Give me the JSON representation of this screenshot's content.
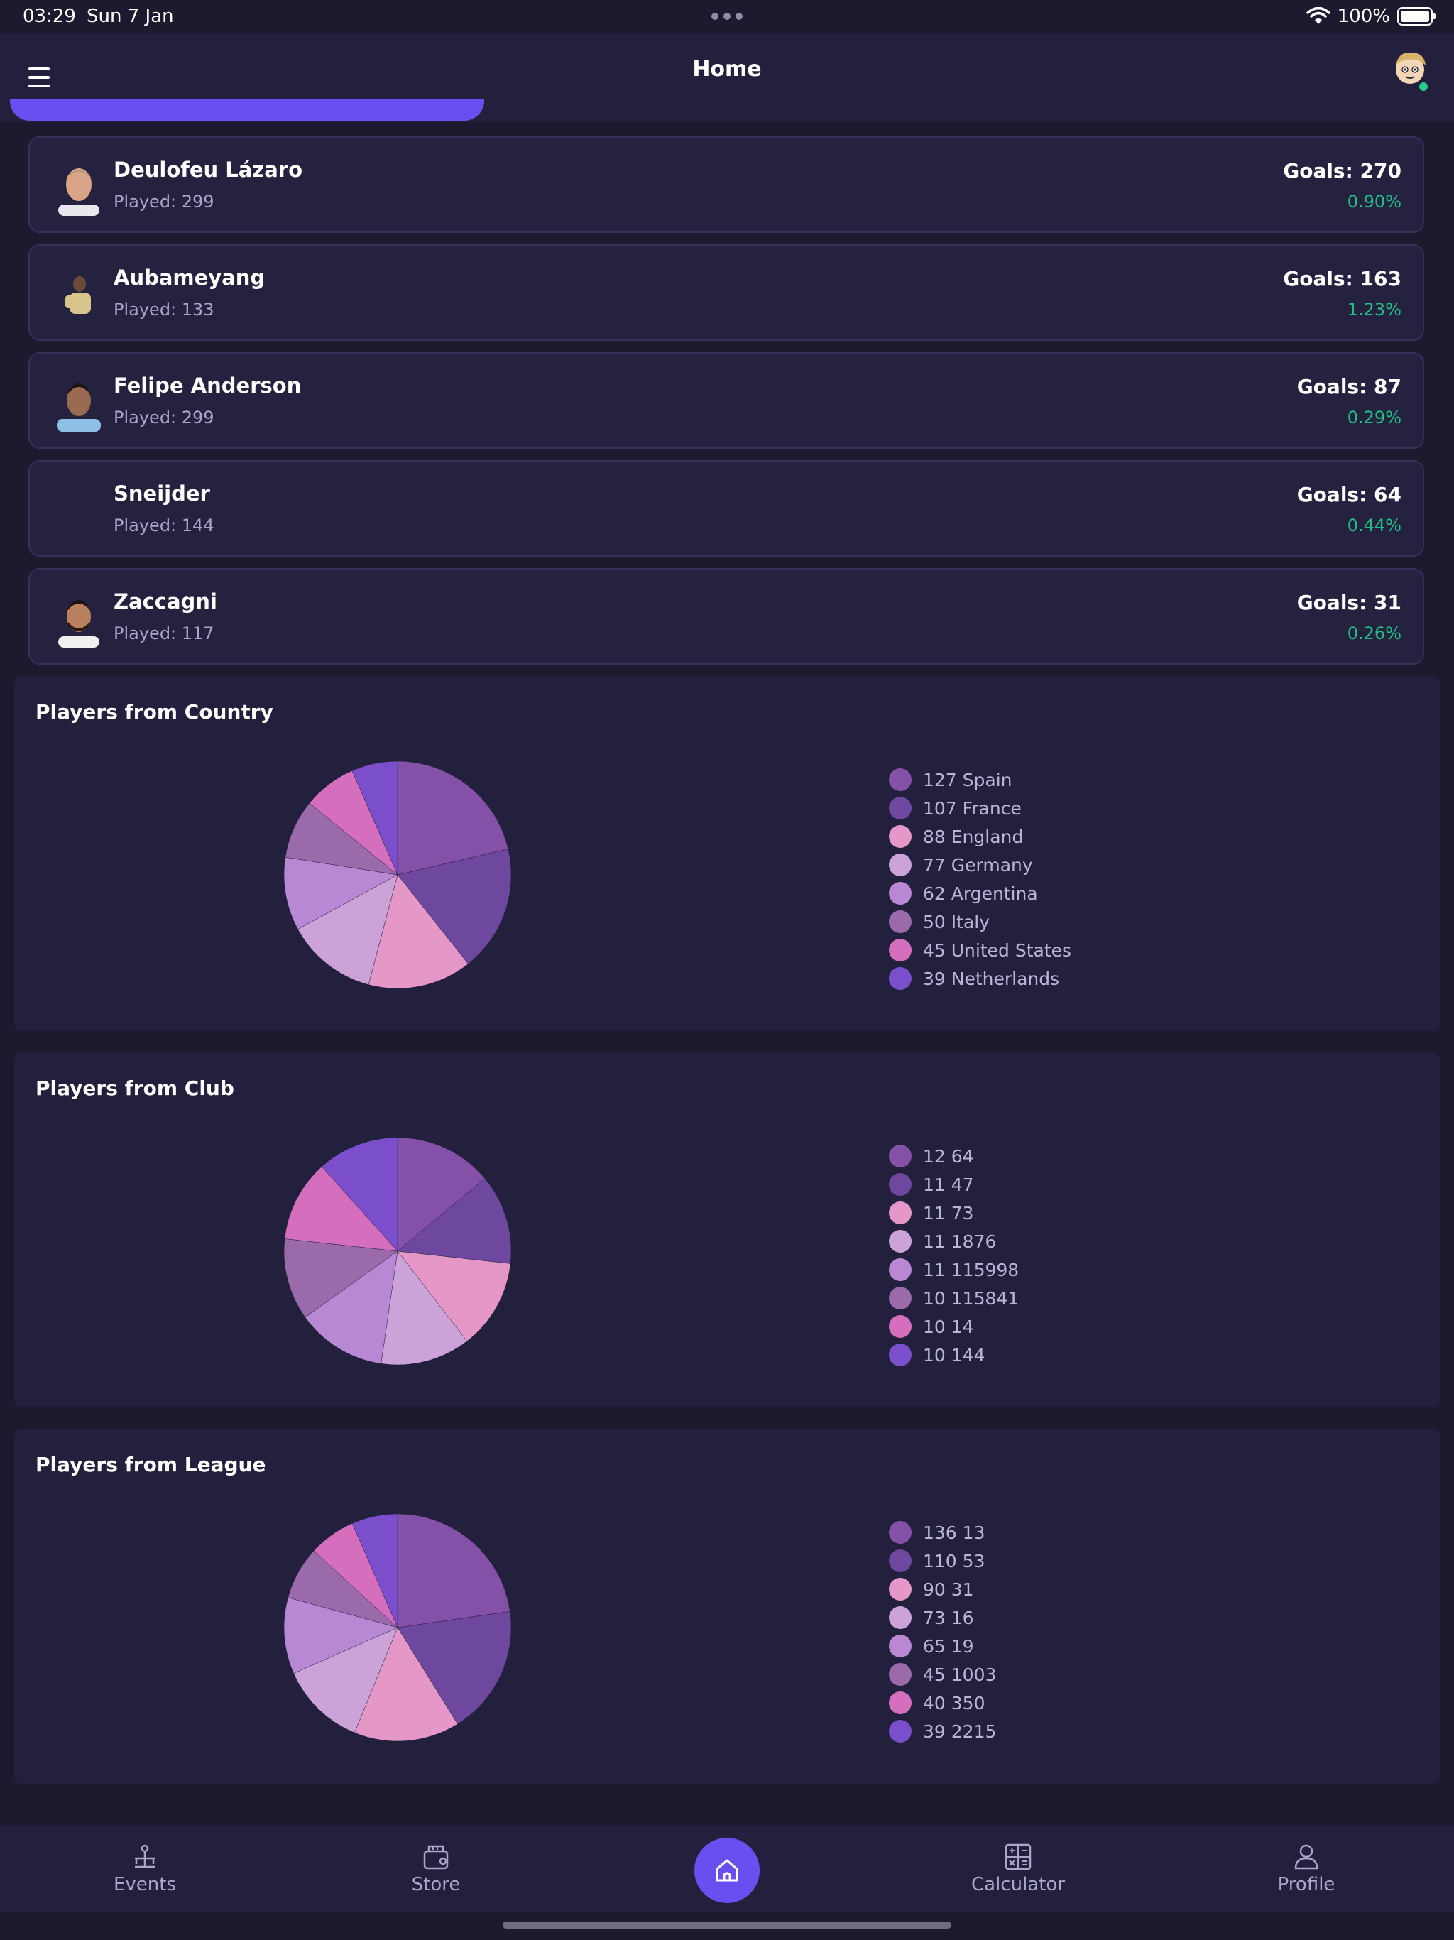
{
  "status": {
    "time": "03:29",
    "date": "Sun 7 Jan",
    "battery": "100%"
  },
  "header": {
    "title": "Home"
  },
  "players": [
    {
      "name": "Deulofeu Lázaro",
      "played": "Played: 299",
      "goals": "Goals: 270",
      "pct": "0.90%"
    },
    {
      "name": "Aubameyang",
      "played": "Played: 133",
      "goals": "Goals: 163",
      "pct": "1.23%"
    },
    {
      "name": "Felipe Anderson",
      "played": "Played: 299",
      "goals": "Goals: 87",
      "pct": "0.29%"
    },
    {
      "name": "Sneijder",
      "played": "Played: 144",
      "goals": "Goals: 64",
      "pct": "0.44%"
    },
    {
      "name": "Zaccagni",
      "played": "Played: 117",
      "goals": "Goals: 31",
      "pct": "0.26%"
    }
  ],
  "colors": {
    "accent": "#6a4ff0",
    "positive": "#1fbf86",
    "pie": [
      "#8550a8",
      "#6e479f",
      "#e597c7",
      "#cba3d9",
      "#b988d4",
      "#9b6aaa",
      "#d56fbd",
      "#7b4fcc"
    ]
  },
  "chart_data": [
    {
      "type": "pie",
      "title": "Players from Country",
      "labels": [
        "127 Spain",
        "107 France",
        "88 England",
        "77 Germany",
        "62 Argentina",
        "50 Italy",
        "45 United States",
        "39 Netherlands"
      ],
      "values": [
        127,
        107,
        88,
        77,
        62,
        50,
        45,
        39
      ]
    },
    {
      "type": "pie",
      "title": "Players from Club",
      "labels": [
        "12 64",
        "11 47",
        "11 73",
        "11 1876",
        "11 115998",
        "10 115841",
        "10 14",
        "10 144"
      ],
      "values": [
        12,
        11,
        11,
        11,
        11,
        10,
        10,
        10
      ]
    },
    {
      "type": "pie",
      "title": "Players from League",
      "labels": [
        "136 13",
        "110 53",
        "90 31",
        "73 16",
        "65 19",
        "45 1003",
        "40 350",
        "39 2215"
      ],
      "values": [
        136,
        110,
        90,
        73,
        65,
        45,
        40,
        39
      ]
    }
  ],
  "nav": {
    "events": "Events",
    "store": "Store",
    "calculator": "Calculator",
    "profile": "Profile"
  }
}
